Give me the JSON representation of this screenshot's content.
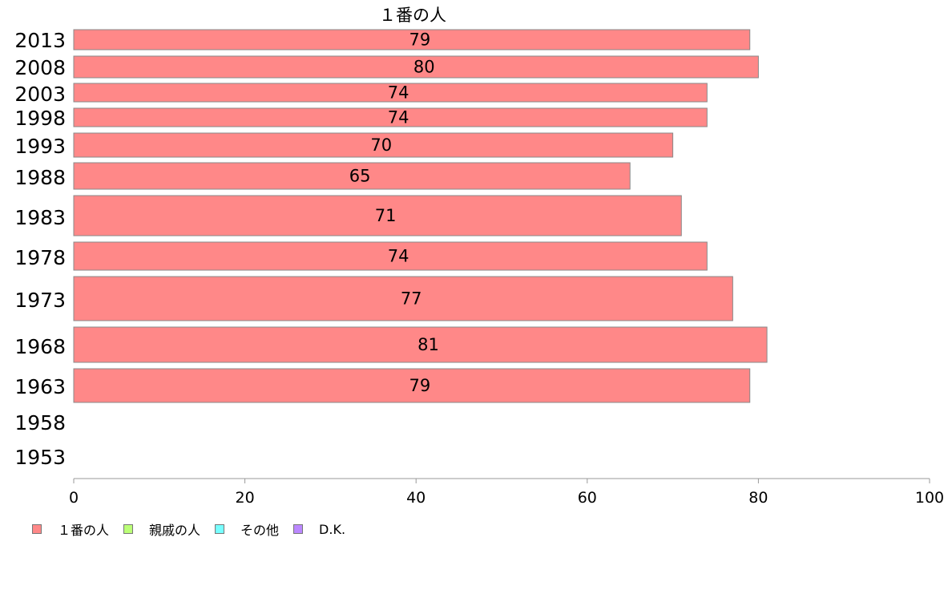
{
  "chart_data": {
    "type": "bar",
    "orientation": "horizontal",
    "title": "１番の人",
    "categories": [
      "2013",
      "2008",
      "2003",
      "1998",
      "1993",
      "1988",
      "1983",
      "1978",
      "1973",
      "1968",
      "1963",
      "1958",
      "1953"
    ],
    "series": [
      {
        "name": "１番の人",
        "color": "#ff8888",
        "values": [
          79,
          80,
          74,
          74,
          70,
          65,
          71,
          74,
          77,
          81,
          79,
          null,
          null
        ]
      }
    ],
    "xlim": [
      0,
      100
    ],
    "xticks": [
      0,
      20,
      40,
      60,
      80,
      100
    ],
    "legend": [
      {
        "label": "１番の人",
        "color": "#ff8888"
      },
      {
        "label": "親戚の人",
        "color": "#bbff77"
      },
      {
        "label": "その他",
        "color": "#77ffff"
      },
      {
        "label": "D.K.",
        "color": "#bb88ff"
      }
    ],
    "legend_position": "bottom-left"
  }
}
